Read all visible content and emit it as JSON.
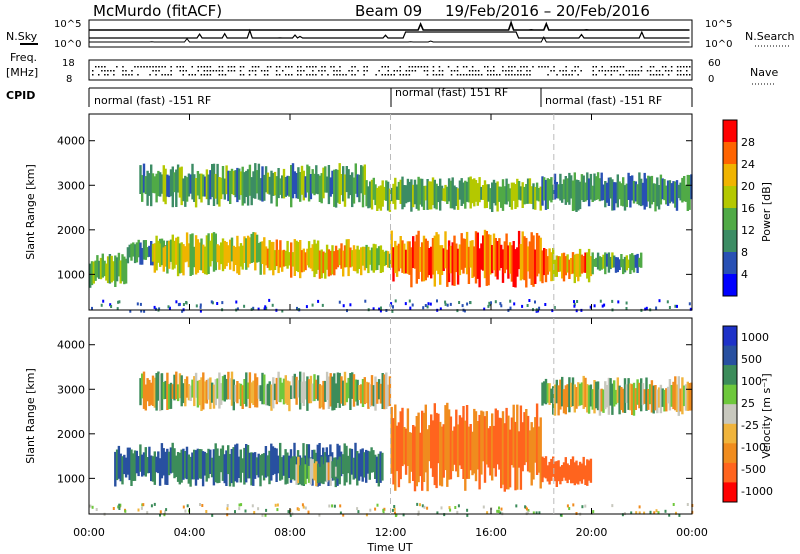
{
  "header": {
    "station": "McMurdo (fitACF)",
    "beam": "Beam 09",
    "dates": "19/Feb/2016 – 20/Feb/2016"
  },
  "status_panels": {
    "nsky_label": "N.Sky",
    "nsearch_label": "N.Search",
    "freq_label": "Freq.",
    "freq_unit": "[MHz]",
    "nave_label": "Nave",
    "cpid_label": "CPID",
    "noise_left_ticks": [
      "10^5",
      "10^0"
    ],
    "noise_right_ticks": [
      "10^5",
      "10^0"
    ],
    "freq_ticks": [
      "18",
      "8"
    ],
    "nave_ticks": [
      "60",
      "0"
    ],
    "cpid_segments": [
      {
        "label": "normal (fast) -151 RF",
        "start_h": 0
      },
      {
        "label": "normal (fast) 151 RF",
        "start_h": 12
      },
      {
        "label": "normal (fast) -151 RF",
        "start_h": 18.5
      }
    ]
  },
  "colors": {
    "power_scale": [
      "#0000ff",
      "#2850b4",
      "#3c8c64",
      "#50aa46",
      "#b4c800",
      "#f0b400",
      "#ff6400",
      "#ff0000"
    ],
    "velocity_scale": [
      "#1e32c8",
      "#2850a0",
      "#3c8c5a",
      "#6ec83c",
      "#c8c8be",
      "#f0b43c",
      "#f08c1e",
      "#ff641e",
      "#ff0000"
    ]
  },
  "chart_data": [
    {
      "type": "heatmap",
      "title": "Power",
      "xlabel": "Time UT",
      "ylabel": "Slant Range [km]",
      "xlim_hours": [
        0,
        24
      ],
      "ylim": [
        200,
        4600
      ],
      "x_ticks": [
        "00:00",
        "04:00",
        "08:00",
        "12:00",
        "16:00",
        "20:00",
        "00:00"
      ],
      "y_ticks": [
        1000,
        2000,
        3000,
        4000
      ],
      "colorbar": {
        "label": "Power [dB]",
        "ticks": [
          "4",
          "8",
          "12",
          "16",
          "20",
          "24",
          "28"
        ],
        "range": [
          0,
          32
        ]
      },
      "echo_regions": [
        {
          "h": [
            0,
            1.5
          ],
          "range": [
            700,
            1500
          ],
          "level": 14
        },
        {
          "h": [
            1.5,
            3.5
          ],
          "range": [
            1200,
            1800
          ],
          "level": 10
        },
        {
          "h": [
            2.5,
            7
          ],
          "range": [
            950,
            1950
          ],
          "level": 18
        },
        {
          "h": [
            7,
            11
          ],
          "range": [
            900,
            1800
          ],
          "level": 22
        },
        {
          "h": [
            11,
            12
          ],
          "range": [
            1000,
            1700
          ],
          "level": 18
        },
        {
          "h": [
            12,
            18
          ],
          "range": [
            700,
            2000
          ],
          "level": 26
        },
        {
          "h": [
            18,
            20
          ],
          "range": [
            800,
            1600
          ],
          "level": 24
        },
        {
          "h": [
            20,
            22
          ],
          "range": [
            1000,
            1500
          ],
          "level": 12
        },
        {
          "h": [
            2,
            11
          ],
          "range": [
            2500,
            3500
          ],
          "level": 12
        },
        {
          "h": [
            11,
            18
          ],
          "range": [
            2400,
            3200
          ],
          "level": 14
        },
        {
          "h": [
            18,
            24
          ],
          "range": [
            2400,
            3300
          ],
          "level": 10
        }
      ]
    },
    {
      "type": "heatmap",
      "title": "Velocity",
      "xlabel": "Time UT",
      "ylabel": "Slant Range [km]",
      "xlim_hours": [
        0,
        24
      ],
      "ylim": [
        200,
        4600
      ],
      "x_ticks": [
        "00:00",
        "04:00",
        "08:00",
        "12:00",
        "16:00",
        "20:00",
        "00:00"
      ],
      "y_ticks": [
        1000,
        2000,
        3000,
        4000
      ],
      "colorbar": {
        "label": "Velocity [m s⁻¹]",
        "ticks": [
          "1000",
          "500",
          "100",
          "25",
          "-25",
          "-100",
          "-500",
          "-1000"
        ]
      },
      "echo_regions": [
        {
          "h": [
            1,
            11.7
          ],
          "range": [
            800,
            1800
          ],
          "velocity": 300
        },
        {
          "h": [
            8,
            10
          ],
          "range": [
            800,
            1500
          ],
          "velocity": 50
        },
        {
          "h": [
            12,
            18
          ],
          "range": [
            700,
            2700
          ],
          "velocity": -300
        },
        {
          "h": [
            18,
            20
          ],
          "range": [
            800,
            1500
          ],
          "velocity": -500
        },
        {
          "h": [
            2,
            12
          ],
          "range": [
            2500,
            3400
          ],
          "velocity": 0
        },
        {
          "h": [
            18,
            24
          ],
          "range": [
            2400,
            3300
          ],
          "velocity": 0
        }
      ]
    }
  ]
}
